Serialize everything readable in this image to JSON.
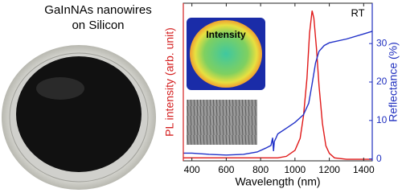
{
  "photo": {
    "caption": [
      "GaInNAs nanowires",
      "on Silicon"
    ]
  },
  "chart_data": {
    "type": "line",
    "x_label": "Wavelength (nm)",
    "y_label": "PL intensity (arb. unit)",
    "y2_label": "Reflectance (%)",
    "annotations": [
      "RT",
      "Intensity"
    ],
    "xlim": [
      350,
      1450
    ],
    "xticks": [
      400,
      600,
      800,
      1000,
      1200,
      1400
    ],
    "ylim": [
      0,
      1.05
    ],
    "y2lim": [
      -0.5,
      40.5
    ],
    "y2ticks": [
      0,
      10,
      20,
      30
    ],
    "y_color": "#d42020",
    "y2_color": "#1f2fbf",
    "series": [
      {
        "name": "PL intensity",
        "color": "#e01818",
        "axis": "y",
        "x": [
          350,
          500,
          700,
          900,
          950,
          1000,
          1030,
          1050,
          1070,
          1085,
          1100,
          1110,
          1125,
          1140,
          1160,
          1180,
          1200,
          1230,
          1300,
          1450
        ],
        "values": [
          0.02,
          0.02,
          0.02,
          0.02,
          0.03,
          0.07,
          0.15,
          0.3,
          0.55,
          0.85,
          1.0,
          0.95,
          0.75,
          0.5,
          0.25,
          0.1,
          0.05,
          0.02,
          0.01,
          0.01
        ]
      },
      {
        "name": "Reflectance",
        "color": "#2030c8",
        "axis": "y2",
        "x": [
          350,
          400,
          500,
          600,
          700,
          780,
          830,
          860,
          870,
          875,
          880,
          890,
          900,
          950,
          1000,
          1050,
          1080,
          1100,
          1120,
          1140,
          1170,
          1200,
          1300,
          1400,
          1450
        ],
        "values": [
          1.5,
          1.5,
          1.2,
          1.0,
          1.2,
          1.8,
          2.8,
          3.5,
          5.5,
          2.0,
          4.5,
          5.5,
          6.5,
          8.0,
          9.5,
          11.5,
          14.5,
          19.5,
          25.0,
          28.0,
          29.5,
          30.2,
          31.2,
          32.5,
          33.2
        ]
      }
    ]
  }
}
